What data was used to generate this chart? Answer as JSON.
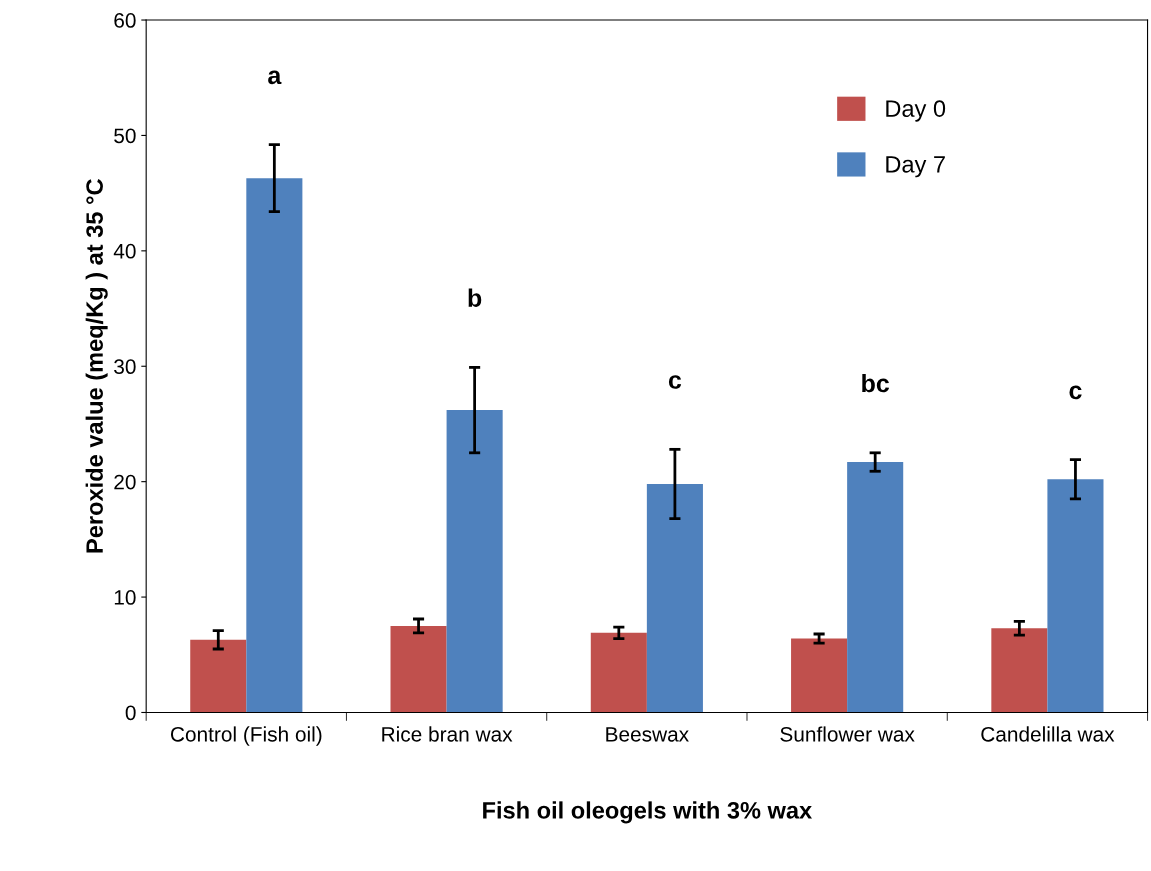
{
  "chart_data": {
    "type": "bar",
    "xlabel": "Fish oil oleogels with 3% wax",
    "ylabel": "Peroxide value (meq/Kg ) at 35 °C",
    "categories": [
      "Control (Fish oil)",
      "Rice bran wax",
      "Beeswax",
      "Sunflower wax",
      "Candelilla wax"
    ],
    "series": [
      {
        "name": "Day 0",
        "color": "#c0504d",
        "values": [
          6.3,
          7.5,
          6.9,
          6.4,
          7.3
        ],
        "errors": [
          0.8,
          0.6,
          0.5,
          0.4,
          0.6
        ]
      },
      {
        "name": "Day 7",
        "color": "#4f81bd",
        "values": [
          46.3,
          26.2,
          19.8,
          21.7,
          20.2
        ],
        "errors": [
          2.9,
          3.7,
          3.0,
          0.8,
          1.7
        ]
      }
    ],
    "ylim": [
      0,
      60
    ],
    "yticks": [
      0,
      10,
      20,
      30,
      40,
      50,
      60
    ],
    "annotations": [
      "a",
      "b",
      "c",
      "bc",
      "c"
    ],
    "grid": false,
    "legend": "top right"
  }
}
